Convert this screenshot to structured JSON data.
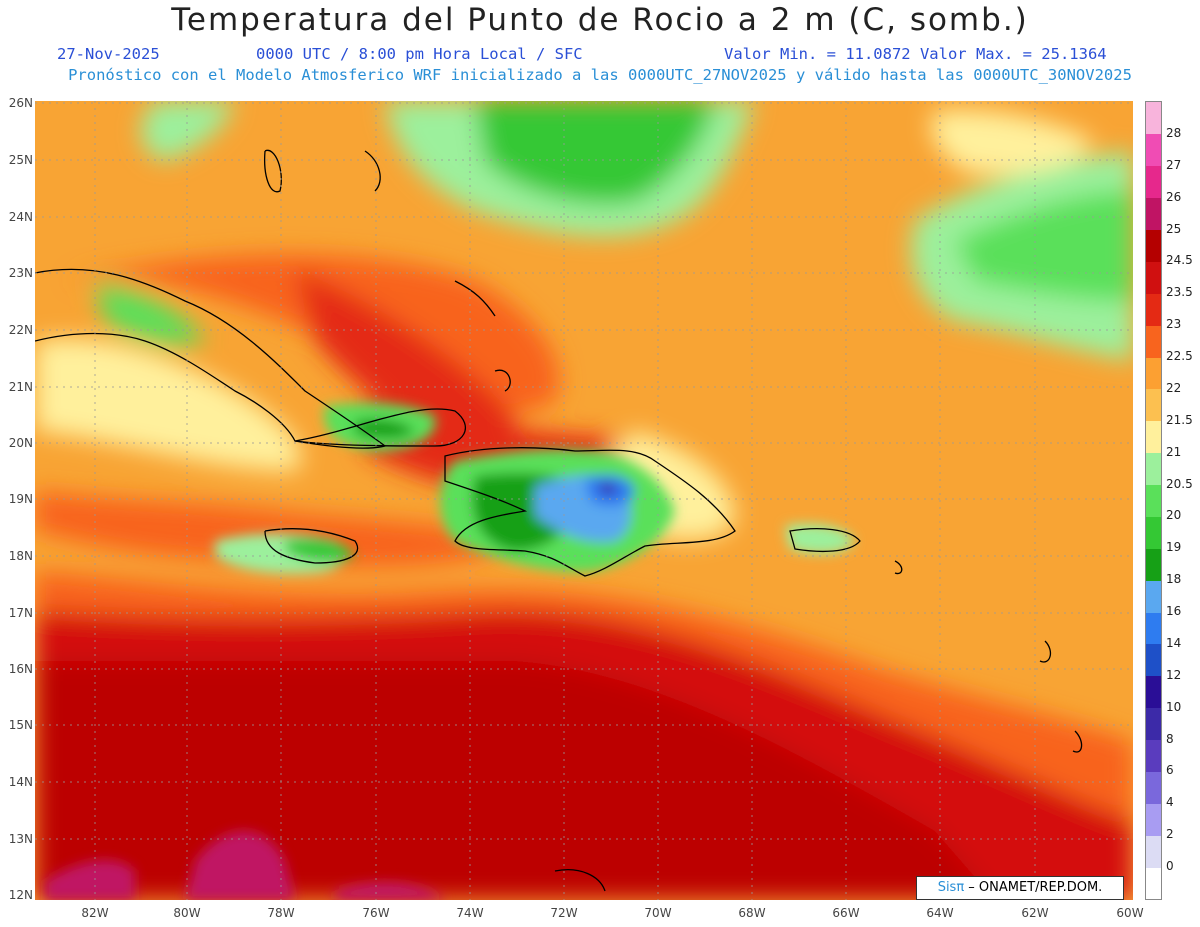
{
  "header": {
    "title": "Temperatura del Punto de Rocio a 2 m (C, somb.)",
    "date": "27-Nov-2025",
    "time": "0000 UTC / 8:00 pm Hora Local / SFC",
    "minmax": "Valor Min. = 11.0872  Valor Max. = 25.1364",
    "subtitle": "Pronóstico con el Modelo Atmosferico WRF inicializado a las 0000UTC_27NOV2025 y válido hasta las  0000UTC_30NOV2025"
  },
  "map": {
    "lon_range": [
      -83.2,
      -60.0
    ],
    "lat_range": [
      11.8,
      26.2
    ],
    "lon_ticks": [
      "82W",
      "80W",
      "78W",
      "76W",
      "74W",
      "72W",
      "70W",
      "68W",
      "66W",
      "64W",
      "62W",
      "60W"
    ],
    "lat_ticks": [
      "26N",
      "25N",
      "24N",
      "23N",
      "22N",
      "21N",
      "20N",
      "19N",
      "18N",
      "17N",
      "16N",
      "15N",
      "14N",
      "13N",
      "12N"
    ]
  },
  "legend": {
    "levels": [
      "0",
      "2",
      "4",
      "6",
      "8",
      "10",
      "12",
      "14",
      "16",
      "18",
      "19",
      "20",
      "20.5",
      "21",
      "21.5",
      "22",
      "22.5",
      "23",
      "23.5",
      "24.5",
      "25",
      "26",
      "27",
      "28"
    ],
    "colors": [
      "#ffffff",
      "#dcdcf4",
      "#a89cf2",
      "#7a68dc",
      "#5a3cbe",
      "#3c2aa8",
      "#2a0e96",
      "#1e50c8",
      "#2e7cf0",
      "#5aa8f0",
      "#16a016",
      "#34c834",
      "#5ae05a",
      "#9cf09c",
      "#fff09c",
      "#fcc050",
      "#fca032",
      "#f8641e",
      "#e42a14",
      "#d01010",
      "#b40000",
      "#c01464",
      "#e6288c",
      "#f04cb4",
      "#f8b4dc"
    ]
  },
  "credit": {
    "sis": "Sisπ",
    "org": " – ONAMET/REP.DOM."
  }
}
